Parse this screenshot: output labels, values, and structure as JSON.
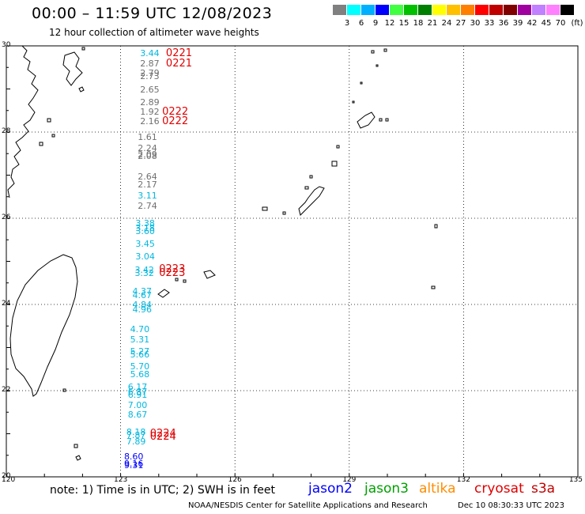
{
  "title": "00:00 – 11:59 UTC 12/08/2023",
  "subtitle": "12 hour collection of altimeter wave heights",
  "legend": {
    "colors": [
      "#808080",
      "#00ffff",
      "#00b0ff",
      "#0000ff",
      "#40ff40",
      "#00c000",
      "#008000",
      "#ffff00",
      "#ffc000",
      "#ff8000",
      "#ff0000",
      "#c00000",
      "#800000",
      "#a000a0",
      "#c080ff",
      "#ff80ff",
      "#000000"
    ],
    "labels": [
      "3",
      "6",
      "9",
      "12",
      "15",
      "18",
      "21",
      "24",
      "27",
      "30",
      "33",
      "36",
      "39",
      "42",
      "45",
      "70"
    ],
    "unit": "(ft)"
  },
  "axes": {
    "lat_labels": [
      "30",
      "28",
      "26",
      "24",
      "22",
      "20"
    ],
    "lon_labels": [
      "120",
      "123",
      "126",
      "129",
      "132",
      "135"
    ]
  },
  "observations": [
    {
      "lat": 29.82,
      "lon": 123.78,
      "v": "3.44",
      "c": "#00b8e0"
    },
    {
      "lat": 29.58,
      "lon": 123.78,
      "v": "2.87",
      "c": "#707070"
    },
    {
      "lat": 29.35,
      "lon": 123.78,
      "v": "2.79",
      "c": "#707070"
    },
    {
      "lat": 29.28,
      "lon": 123.78,
      "v": "2.73",
      "c": "#707070"
    },
    {
      "lat": 28.98,
      "lon": 123.78,
      "v": "2.65",
      "c": "#707070"
    },
    {
      "lat": 28.67,
      "lon": 123.78,
      "v": "2.89",
      "c": "#707070"
    },
    {
      "lat": 28.46,
      "lon": 123.78,
      "v": "1.92",
      "c": "#707070"
    },
    {
      "lat": 28.23,
      "lon": 123.78,
      "v": "2.16",
      "c": "#707070"
    },
    {
      "lat": 27.87,
      "lon": 123.72,
      "v": "1.61",
      "c": "#707070"
    },
    {
      "lat": 27.62,
      "lon": 123.72,
      "v": "2.24",
      "c": "#707070"
    },
    {
      "lat": 27.47,
      "lon": 123.72,
      "v": "2.09",
      "c": "#707070"
    },
    {
      "lat": 27.43,
      "lon": 123.72,
      "v": "2.08",
      "c": "#707070"
    },
    {
      "lat": 26.96,
      "lon": 123.72,
      "v": "2.64",
      "c": "#707070"
    },
    {
      "lat": 26.77,
      "lon": 123.72,
      "v": "2.17",
      "c": "#707070"
    },
    {
      "lat": 26.51,
      "lon": 123.72,
      "v": "3.11",
      "c": "#00b8e0"
    },
    {
      "lat": 26.27,
      "lon": 123.72,
      "v": "2.74",
      "c": "#707070"
    },
    {
      "lat": 25.88,
      "lon": 123.66,
      "v": "3.38",
      "c": "#00b8e0"
    },
    {
      "lat": 25.76,
      "lon": 123.66,
      "v": "3.18",
      "c": "#00b8e0"
    },
    {
      "lat": 25.68,
      "lon": 123.66,
      "v": "3.60",
      "c": "#00b8e0"
    },
    {
      "lat": 25.4,
      "lon": 123.66,
      "v": "3.45",
      "c": "#00b8e0"
    },
    {
      "lat": 25.1,
      "lon": 123.66,
      "v": "3.04",
      "c": "#00b8e0"
    },
    {
      "lat": 24.78,
      "lon": 123.64,
      "v": "3.42",
      "c": "#00b8e0"
    },
    {
      "lat": 24.72,
      "lon": 123.64,
      "v": "3.32",
      "c": "#00b8e0"
    },
    {
      "lat": 24.3,
      "lon": 123.58,
      "v": "4.37",
      "c": "#00b8e0"
    },
    {
      "lat": 24.2,
      "lon": 123.58,
      "v": "4.67",
      "c": "#00b8e0"
    },
    {
      "lat": 23.98,
      "lon": 123.58,
      "v": "4.84",
      "c": "#00b8e0"
    },
    {
      "lat": 23.88,
      "lon": 123.58,
      "v": "4.96",
      "c": "#00b8e0"
    },
    {
      "lat": 23.42,
      "lon": 123.52,
      "v": "4.70",
      "c": "#00b8e0"
    },
    {
      "lat": 23.17,
      "lon": 123.52,
      "v": "5.31",
      "c": "#00b8e0"
    },
    {
      "lat": 22.9,
      "lon": 123.52,
      "v": "5.27",
      "c": "#00b8e0"
    },
    {
      "lat": 22.82,
      "lon": 123.52,
      "v": "5.66",
      "c": "#00b8e0"
    },
    {
      "lat": 22.55,
      "lon": 123.52,
      "v": "5.70",
      "c": "#00b8e0"
    },
    {
      "lat": 22.37,
      "lon": 123.52,
      "v": "5.68",
      "c": "#00b8e0"
    },
    {
      "lat": 22.07,
      "lon": 123.46,
      "v": "6.17",
      "c": "#00b8e0"
    },
    {
      "lat": 21.97,
      "lon": 123.46,
      "v": "6.87",
      "c": "#00b8e0"
    },
    {
      "lat": 21.89,
      "lon": 123.46,
      "v": "6.91",
      "c": "#00b8e0"
    },
    {
      "lat": 21.65,
      "lon": 123.46,
      "v": "7.00",
      "c": "#00b8e0"
    },
    {
      "lat": 21.43,
      "lon": 123.46,
      "v": "8.67",
      "c": "#00b8e0"
    },
    {
      "lat": 21.03,
      "lon": 123.42,
      "v": "8.18",
      "c": "#00b8e0"
    },
    {
      "lat": 20.96,
      "lon": 123.42,
      "v": "7.87",
      "c": "#00b8e0"
    },
    {
      "lat": 20.8,
      "lon": 123.42,
      "v": "7.89",
      "c": "#00b8e0"
    },
    {
      "lat": 20.46,
      "lon": 123.36,
      "v": "8.60",
      "c": "#0000ff"
    },
    {
      "lat": 20.3,
      "lon": 123.36,
      "v": "9.16",
      "c": "#0000ff"
    },
    {
      "lat": 20.25,
      "lon": 123.36,
      "v": "9.31",
      "c": "#0000ff"
    }
  ],
  "pass_labels": [
    {
      "lat": 29.82,
      "lon": 124.48,
      "t": "0221"
    },
    {
      "lat": 29.58,
      "lon": 124.48,
      "t": "0221"
    },
    {
      "lat": 28.46,
      "lon": 124.38,
      "t": "0222"
    },
    {
      "lat": 28.23,
      "lon": 124.38,
      "t": "0222"
    },
    {
      "lat": 24.8,
      "lon": 124.3,
      "t": "0223"
    },
    {
      "lat": 24.72,
      "lon": 124.3,
      "t": "0223"
    },
    {
      "lat": 21.0,
      "lon": 124.06,
      "t": "0224"
    },
    {
      "lat": 20.92,
      "lon": 124.06,
      "t": "0224"
    }
  ],
  "footer": {
    "note": "note:  1) Time is in UTC;  2) SWH is in feet",
    "satellites": [
      {
        "name": "jason2",
        "color": "#0000ff"
      },
      {
        "name": "jason3",
        "color": "#00a000"
      },
      {
        "name": "altika",
        "color": "#ff8c00"
      },
      {
        "name": "cryosat",
        "color": "#e00000"
      },
      {
        "name": "s3a",
        "color": "#c00000"
      }
    ],
    "credit": "NOAA/NESDIS Center for Satellite Applications and Research",
    "timestamp": "Dec 10 08:30:33 UTC 2023"
  }
}
